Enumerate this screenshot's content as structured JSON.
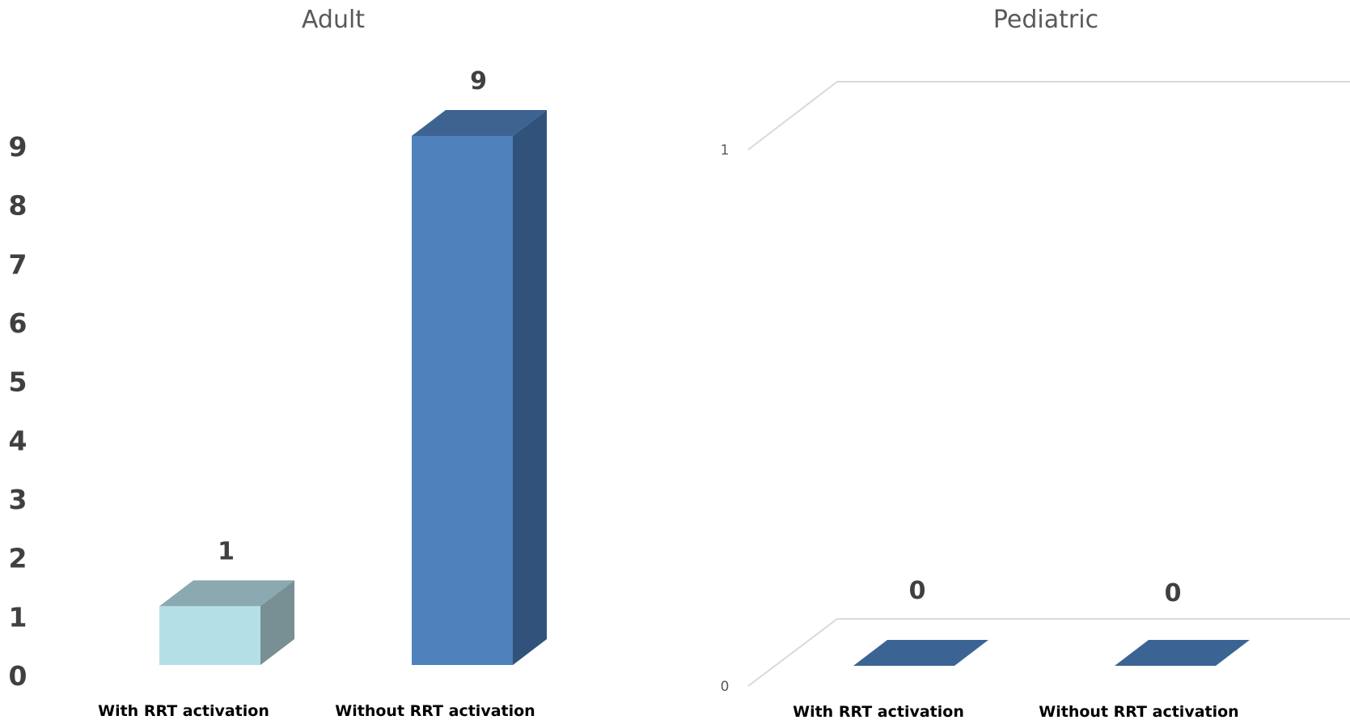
{
  "chart_data": [
    {
      "type": "bar",
      "title": "Adult",
      "categories": [
        "With RRT activation",
        "Without RRT activation"
      ],
      "values": [
        1,
        9
      ],
      "ylim": [
        0,
        9
      ],
      "yticks": [
        0,
        1,
        2,
        3,
        4,
        5,
        6,
        7,
        8,
        9
      ],
      "grid": false,
      "legend": "none",
      "bar_colors": [
        "#b4dfe7",
        "#4f81bd"
      ],
      "bar_side_colors": [
        "#788f94",
        "#31527a"
      ],
      "bar_top_colors": [
        "#8aa9b0",
        "#3d6491"
      ]
    },
    {
      "type": "bar",
      "title": "Pediatric",
      "categories": [
        "With RRT activation",
        "Without RRT activation"
      ],
      "values": [
        0,
        0
      ],
      "ylim": [
        0,
        1
      ],
      "yticks": [
        0,
        1
      ],
      "grid": true,
      "legend": "none",
      "bar_colors": [
        "#3b6494",
        "#3b6494"
      ]
    }
  ]
}
